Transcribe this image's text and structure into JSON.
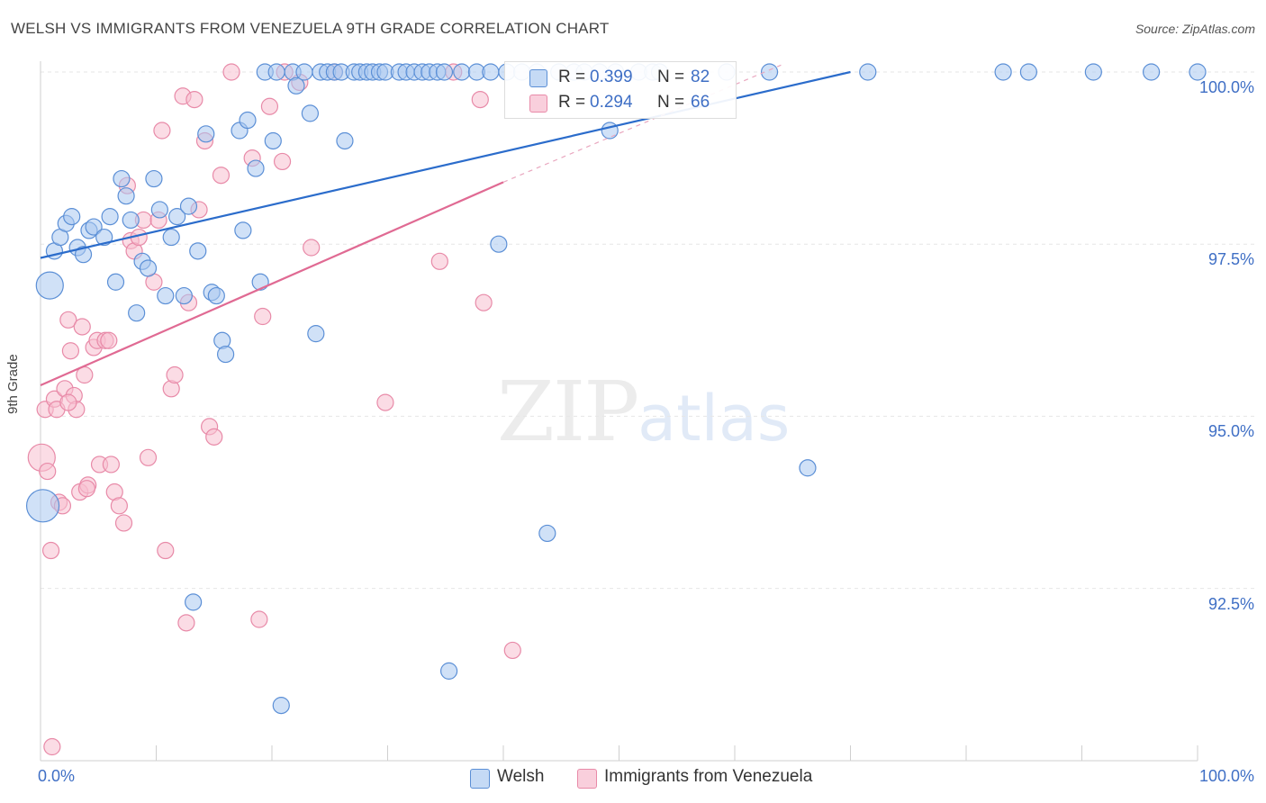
{
  "header": {
    "title": "WELSH VS IMMIGRANTS FROM VENEZUELA 9TH GRADE CORRELATION CHART",
    "source": "Source: ZipAtlas.com"
  },
  "watermark": {
    "part1": "ZIP",
    "part2": "atlas"
  },
  "legend": {
    "welsh": {
      "r_label": "R =",
      "r_value": "0.399",
      "n_label": "N =",
      "n_value": "82"
    },
    "venezuela": {
      "r_label": "R =",
      "r_value": "0.294",
      "n_label": "N =",
      "n_value": "66"
    }
  },
  "colors": {
    "welsh_fill": "#a9c8f0",
    "welsh_stroke": "#5b8fd6",
    "welsh_line": "#2b6ccb",
    "venezuela_fill": "#f7bfd0",
    "venezuela_stroke": "#e88aa8",
    "venezuela_line": "#e06a93",
    "tick_text": "#3f6fc5",
    "grid": "#e6e6e6"
  },
  "chart_data": {
    "type": "scatter",
    "title": "WELSH VS IMMIGRANTS FROM VENEZUELA 9TH GRADE CORRELATION CHART",
    "xlabel": "",
    "ylabel": "9th Grade",
    "xlim": [
      0,
      100
    ],
    "ylim": [
      90.2,
      100.4
    ],
    "x_tick_labels": [
      "0.0%",
      "100.0%"
    ],
    "y_ticks": [
      92.5,
      95.0,
      97.5,
      100.0
    ],
    "y_tick_labels": [
      "92.5%",
      "95.0%",
      "97.5%",
      "100.0%"
    ],
    "grid": true,
    "legend_position": "top-center",
    "series": [
      {
        "name": "Welsh",
        "trend": {
          "x": [
            0,
            70
          ],
          "y": [
            97.3,
            100.0
          ]
        },
        "points": [
          [
            0.8,
            96.9,
            15
          ],
          [
            0.2,
            93.7,
            18
          ],
          [
            1.2,
            97.4,
            9
          ],
          [
            1.7,
            97.6,
            9
          ],
          [
            2.2,
            97.8,
            9
          ],
          [
            2.7,
            97.9,
            9
          ],
          [
            3.2,
            97.45,
            9
          ],
          [
            3.7,
            97.35,
            9
          ],
          [
            4.2,
            97.7,
            9
          ],
          [
            4.6,
            97.75,
            9
          ],
          [
            5.5,
            97.6,
            9
          ],
          [
            6.0,
            97.9,
            9
          ],
          [
            6.5,
            96.95,
            9
          ],
          [
            7.0,
            98.45,
            9
          ],
          [
            7.4,
            98.2,
            9
          ],
          [
            7.8,
            97.85,
            9
          ],
          [
            8.3,
            96.5,
            9
          ],
          [
            8.8,
            97.25,
            9
          ],
          [
            9.3,
            97.15,
            9
          ],
          [
            9.8,
            98.45,
            9
          ],
          [
            10.3,
            98.0,
            9
          ],
          [
            10.8,
            96.75,
            9
          ],
          [
            11.3,
            97.6,
            9
          ],
          [
            11.8,
            97.9,
            9
          ],
          [
            12.4,
            96.75,
            9
          ],
          [
            12.8,
            98.05,
            9
          ],
          [
            13.2,
            92.3,
            9
          ],
          [
            13.6,
            97.4,
            9
          ],
          [
            14.3,
            99.1,
            9
          ],
          [
            14.8,
            96.8,
            9
          ],
          [
            15.2,
            96.75,
            9
          ],
          [
            15.7,
            96.1,
            9
          ],
          [
            16.0,
            95.9,
            9
          ],
          [
            17.2,
            99.15,
            9
          ],
          [
            17.5,
            97.7,
            9
          ],
          [
            17.9,
            99.3,
            9
          ],
          [
            18.6,
            98.6,
            9
          ],
          [
            19.0,
            96.95,
            9
          ],
          [
            19.4,
            100.0,
            9
          ],
          [
            20.1,
            99.0,
            9
          ],
          [
            20.4,
            100.0,
            9
          ],
          [
            20.8,
            90.8,
            9
          ],
          [
            21.8,
            100.0,
            9
          ],
          [
            22.1,
            99.8,
            9
          ],
          [
            22.8,
            100.0,
            9
          ],
          [
            23.3,
            99.4,
            9
          ],
          [
            23.8,
            96.2,
            9
          ],
          [
            24.2,
            100.0,
            9
          ],
          [
            24.8,
            100.0,
            9
          ],
          [
            25.4,
            100.0,
            9
          ],
          [
            26.0,
            100.0,
            9
          ],
          [
            26.3,
            99.0,
            9
          ],
          [
            27.1,
            100.0,
            9
          ],
          [
            27.6,
            100.0,
            9
          ],
          [
            28.2,
            100.0,
            9
          ],
          [
            28.7,
            100.0,
            9
          ],
          [
            29.3,
            100.0,
            9
          ],
          [
            29.8,
            100.0,
            9
          ],
          [
            31.0,
            100.0,
            9
          ],
          [
            31.6,
            100.0,
            9
          ],
          [
            32.3,
            100.0,
            9
          ],
          [
            33.0,
            100.0,
            9
          ],
          [
            33.6,
            100.0,
            9
          ],
          [
            34.3,
            100.0,
            9
          ],
          [
            34.9,
            100.0,
            9
          ],
          [
            35.3,
            91.3,
            9
          ],
          [
            36.4,
            100.0,
            9
          ],
          [
            37.7,
            100.0,
            9
          ],
          [
            38.9,
            100.0,
            9
          ],
          [
            39.6,
            97.5,
            9
          ],
          [
            40.3,
            100.0,
            9
          ],
          [
            41.6,
            100.0,
            9
          ],
          [
            42.9,
            100.0,
            9
          ],
          [
            43.8,
            93.3,
            9
          ],
          [
            44.8,
            100.0,
            9
          ],
          [
            46.1,
            100.0,
            9
          ],
          [
            47.0,
            100.0,
            9
          ],
          [
            48.3,
            100.0,
            9
          ],
          [
            49.2,
            99.15,
            9
          ],
          [
            49.7,
            100.0,
            9
          ],
          [
            51.7,
            100.0,
            9
          ],
          [
            52.9,
            100.0,
            9
          ],
          [
            53.5,
            100.0,
            9
          ],
          [
            59.3,
            100.0,
            9
          ],
          [
            63.0,
            100.0,
            9
          ],
          [
            66.3,
            94.25,
            9
          ],
          [
            71.5,
            100.0,
            9
          ],
          [
            83.2,
            100.0,
            9
          ],
          [
            85.4,
            100.0,
            9
          ],
          [
            91.0,
            100.0,
            9
          ],
          [
            96.0,
            100.0,
            9
          ],
          [
            100.0,
            100.0,
            9
          ]
        ]
      },
      {
        "name": "Immigrants from Venezuela",
        "trend": {
          "x": [
            0,
            40
          ],
          "y": [
            95.45,
            98.4
          ],
          "dash_x": [
            40,
            64
          ],
          "dash_y": [
            98.4,
            100.1
          ]
        },
        "points": [
          [
            0.1,
            94.4,
            15
          ],
          [
            0.4,
            95.1,
            9
          ],
          [
            0.6,
            94.2,
            9
          ],
          [
            0.9,
            93.05,
            9
          ],
          [
            1.2,
            95.25,
            9
          ],
          [
            1.4,
            95.1,
            9
          ],
          [
            1.6,
            93.75,
            9
          ],
          [
            1.9,
            93.7,
            9
          ],
          [
            2.1,
            95.4,
            9
          ],
          [
            2.4,
            96.4,
            9
          ],
          [
            2.6,
            95.95,
            9
          ],
          [
            2.9,
            95.3,
            9
          ],
          [
            3.1,
            95.1,
            9
          ],
          [
            3.4,
            93.9,
            9
          ],
          [
            3.6,
            96.3,
            9
          ],
          [
            3.8,
            95.6,
            9
          ],
          [
            4.1,
            94.0,
            9
          ],
          [
            4.6,
            96.0,
            9
          ],
          [
            4.9,
            96.1,
            9
          ],
          [
            5.1,
            94.3,
            9
          ],
          [
            5.6,
            96.1,
            9
          ],
          [
            5.9,
            96.1,
            9
          ],
          [
            6.1,
            94.3,
            9
          ],
          [
            6.4,
            93.9,
            9
          ],
          [
            6.8,
            93.7,
            9
          ],
          [
            7.2,
            93.45,
            9
          ],
          [
            7.5,
            98.35,
            9
          ],
          [
            7.8,
            97.55,
            9
          ],
          [
            8.1,
            97.4,
            9
          ],
          [
            8.5,
            97.6,
            9
          ],
          [
            8.9,
            97.85,
            9
          ],
          [
            9.3,
            94.4,
            9
          ],
          [
            9.8,
            96.95,
            9
          ],
          [
            10.2,
            97.85,
            9
          ],
          [
            10.5,
            99.15,
            9
          ],
          [
            10.8,
            93.05,
            9
          ],
          [
            11.3,
            95.4,
            9
          ],
          [
            11.6,
            95.6,
            9
          ],
          [
            12.3,
            99.65,
            9
          ],
          [
            12.8,
            96.65,
            9
          ],
          [
            13.3,
            99.6,
            9
          ],
          [
            13.7,
            98.0,
            9
          ],
          [
            14.2,
            99.0,
            9
          ],
          [
            14.6,
            94.85,
            9
          ],
          [
            15.0,
            94.7,
            9
          ],
          [
            15.6,
            98.5,
            9
          ],
          [
            16.5,
            100.0,
            9
          ],
          [
            18.3,
            98.75,
            9
          ],
          [
            18.9,
            92.05,
            9
          ],
          [
            19.2,
            96.45,
            9
          ],
          [
            19.8,
            99.5,
            9
          ],
          [
            20.9,
            98.7,
            9
          ],
          [
            21.1,
            100.0,
            9
          ],
          [
            22.4,
            99.85,
            9
          ],
          [
            23.4,
            97.45,
            9
          ],
          [
            25.4,
            100.0,
            9
          ],
          [
            29.8,
            95.2,
            9
          ],
          [
            34.5,
            97.25,
            9
          ],
          [
            35.7,
            100.0,
            9
          ],
          [
            38.0,
            99.6,
            9
          ],
          [
            38.3,
            96.65,
            9
          ],
          [
            40.8,
            91.6,
            9
          ],
          [
            1.0,
            90.2,
            9
          ],
          [
            12.6,
            92.0,
            9
          ],
          [
            4.0,
            93.95,
            9
          ],
          [
            2.4,
            95.2,
            9
          ]
        ]
      }
    ]
  },
  "legend_bottom": {
    "welsh": "Welsh",
    "venezuela": "Immigrants from Venezuela"
  }
}
